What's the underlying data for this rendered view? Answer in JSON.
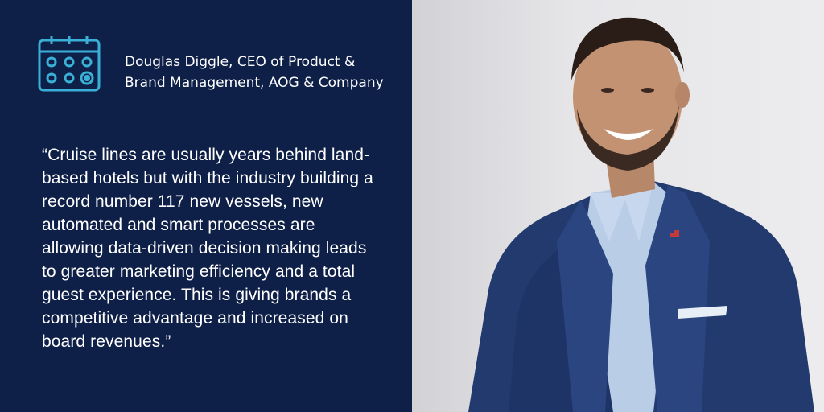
{
  "attribution": "Douglas Diggle, CEO of Product & Brand Management, AOG & Company",
  "quote": "“Cruise lines are usually years behind land-based hotels but with the industry building a record number 117 new vessels, new automated and smart processes are allowing data-driven decision making leads to greater marketing efficiency and a total guest experience. This is giving brands a competitive advantage and increased on board revenues.”",
  "icon": "calendar-icon",
  "colors": {
    "panel_background": "#0f2048",
    "icon_accent": "#3bb0d6",
    "text": "#ffffff",
    "photo_background": "#e6e6e9"
  }
}
